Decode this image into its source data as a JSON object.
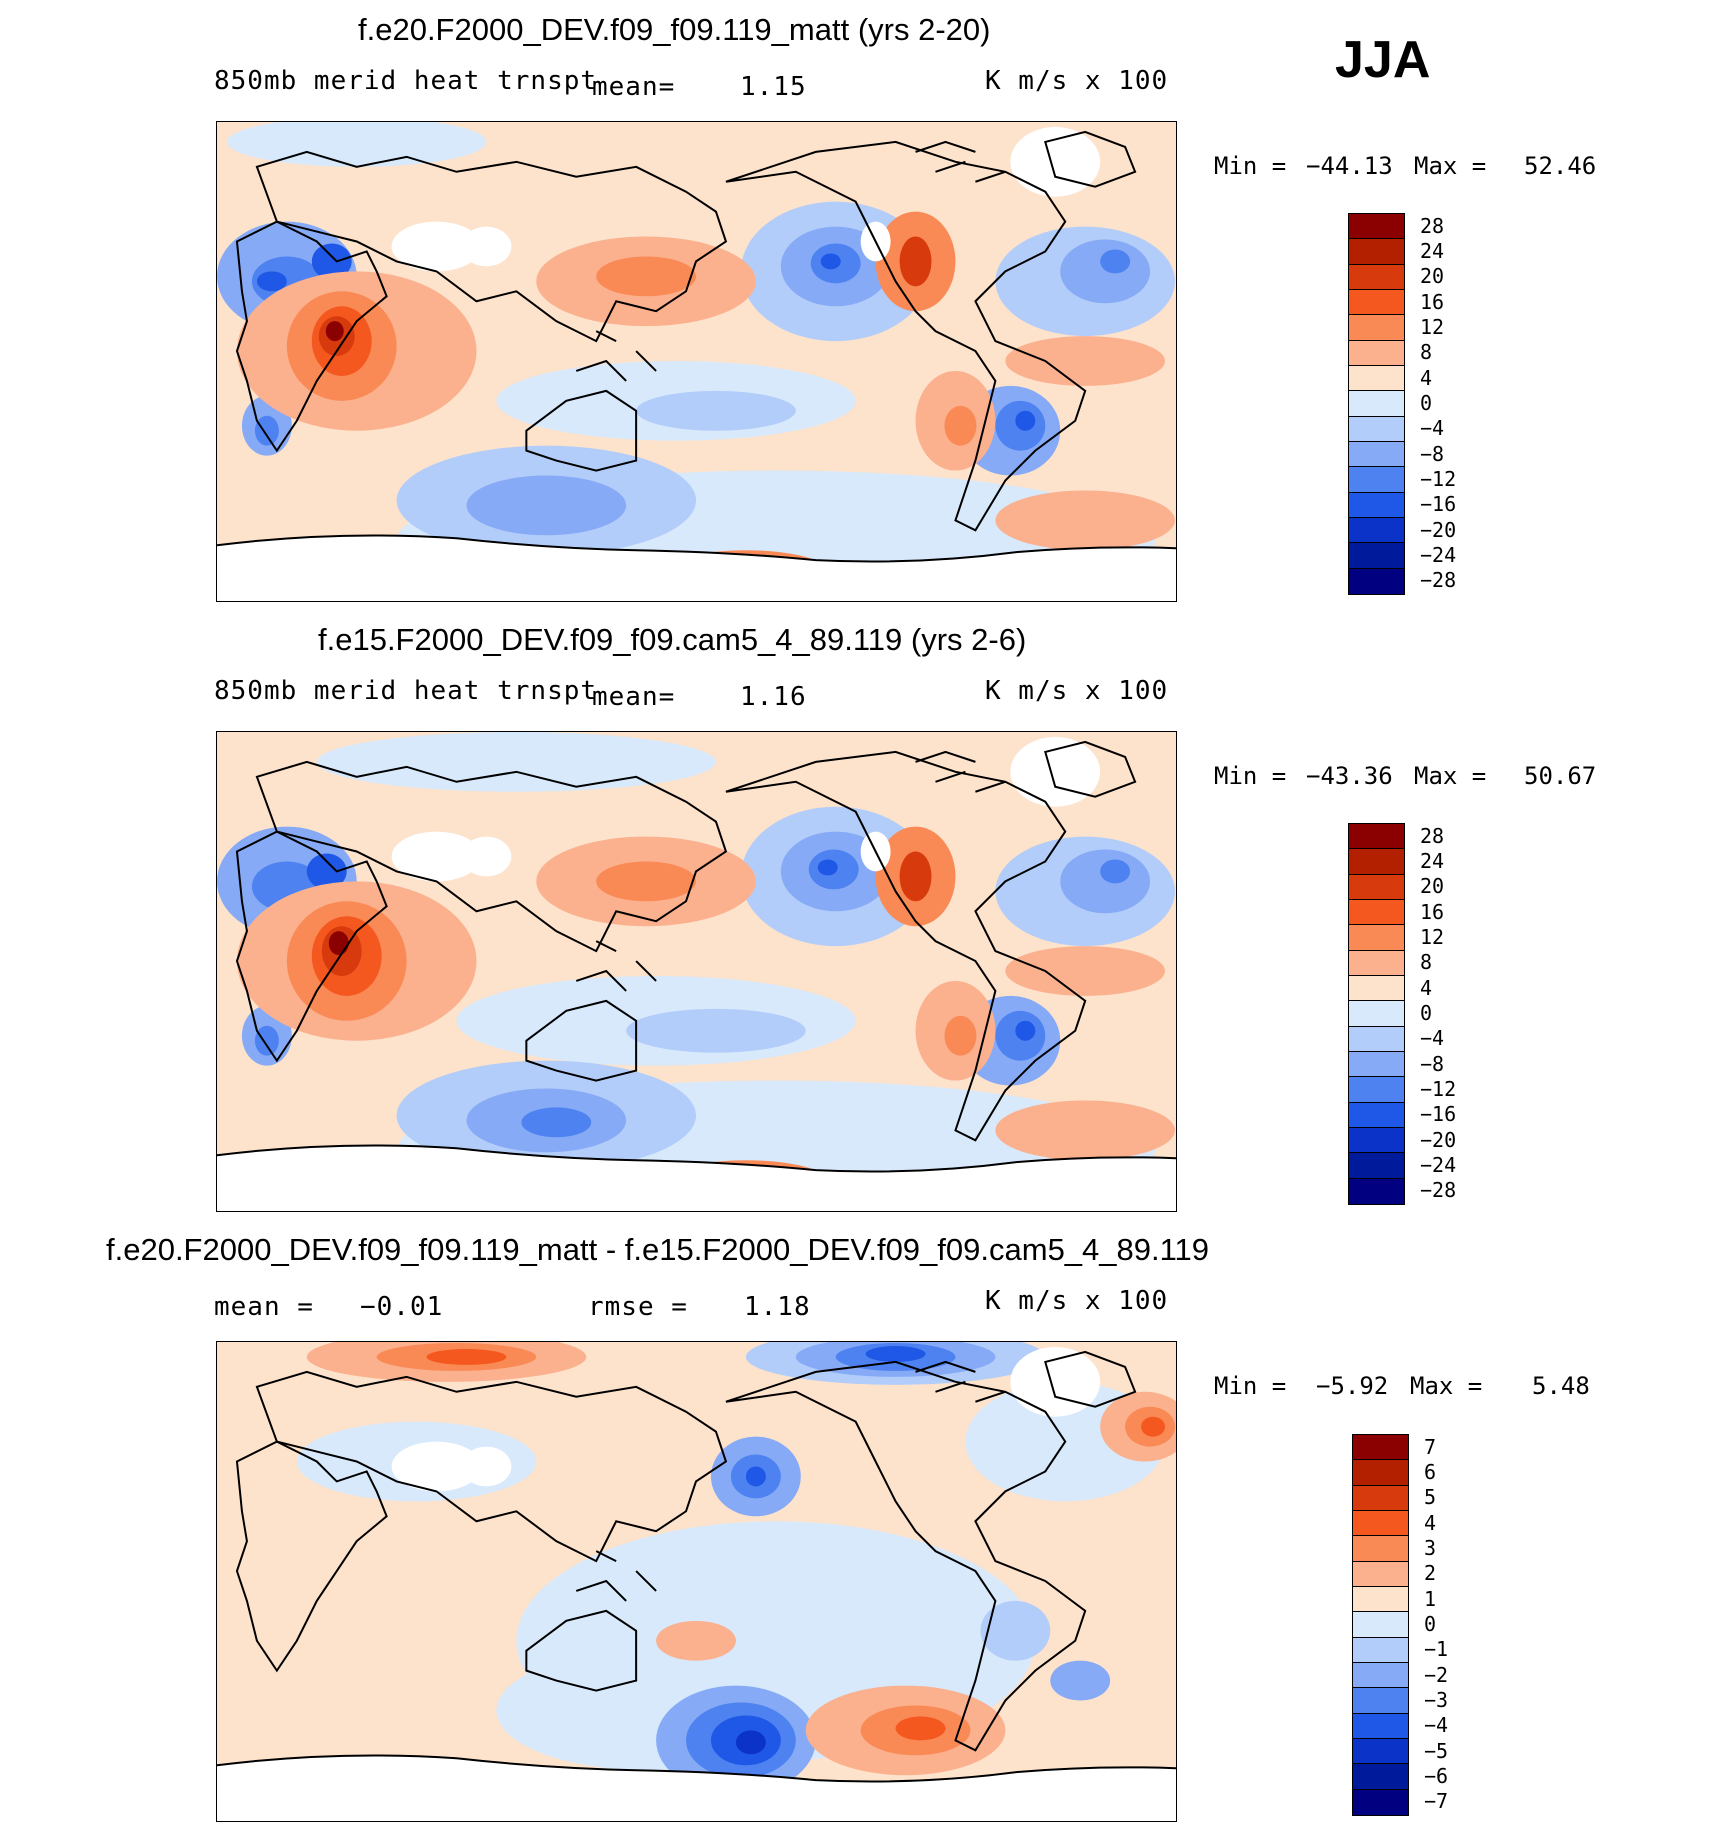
{
  "season": "JJA",
  "panels": [
    {
      "title": "f.e20.F2000_DEV.f09_f09.119_matt (yrs 2-20)",
      "variable": "850mb merid heat trnspt",
      "stat_label": "mean=",
      "stat_value": "1.15",
      "units": "K m/s x 100",
      "min_label": "Min =",
      "min_value": "−44.13",
      "max_label": "Max =",
      "max_value": "52.46",
      "colorbar": {
        "colors": [
          "#8b0000",
          "#b22000",
          "#d73a0c",
          "#f4581f",
          "#f98a55",
          "#fbb08e",
          "#fde2cc",
          "#d7e9fb",
          "#b2cdf9",
          "#86aaf5",
          "#4d82f0",
          "#1f57e6",
          "#0b33c7",
          "#001a9c",
          "#000080"
        ],
        "labels": [
          "28",
          "24",
          "20",
          "16",
          "12",
          "8",
          "4",
          "0",
          "−4",
          "−8",
          "−12",
          "−16",
          "−20",
          "−24",
          "−28"
        ]
      }
    },
    {
      "title": "f.e15.F2000_DEV.f09_f09.cam5_4_89.119 (yrs 2-6)",
      "variable": "850mb merid heat trnspt",
      "stat_label": "mean=",
      "stat_value": "1.16",
      "units": "K m/s x 100",
      "min_label": "Min =",
      "min_value": "−43.36",
      "max_label": "Max =",
      "max_value": "50.67",
      "colorbar": {
        "colors": [
          "#8b0000",
          "#b22000",
          "#d73a0c",
          "#f4581f",
          "#f98a55",
          "#fbb08e",
          "#fde2cc",
          "#d7e9fb",
          "#b2cdf9",
          "#86aaf5",
          "#4d82f0",
          "#1f57e6",
          "#0b33c7",
          "#001a9c",
          "#000080"
        ],
        "labels": [
          "28",
          "24",
          "20",
          "16",
          "12",
          "8",
          "4",
          "0",
          "−4",
          "−8",
          "−12",
          "−16",
          "−20",
          "−24",
          "−28"
        ]
      }
    },
    {
      "title": "f.e20.F2000_DEV.f09_f09.119_matt - f.e15.F2000_DEV.f09_f09.cam5_4_89.119",
      "stat_label": "mean =",
      "stat_value": "−0.01",
      "rmse_label": "rmse =",
      "rmse_value": "1.18",
      "units": "K m/s x 100",
      "min_label": "Min =",
      "min_value": "−5.92",
      "max_label": "Max =",
      "max_value": "5.48",
      "colorbar": {
        "colors": [
          "#8b0000",
          "#b22000",
          "#d73a0c",
          "#f4581f",
          "#f98a55",
          "#fbb08e",
          "#fde2cc",
          "#d7e9fb",
          "#b2cdf9",
          "#86aaf5",
          "#4d82f0",
          "#1f57e6",
          "#0b33c7",
          "#001a9c",
          "#000080"
        ],
        "labels": [
          "7",
          "6",
          "5",
          "4",
          "3",
          "2",
          "1",
          "0",
          "−1",
          "−2",
          "−3",
          "−4",
          "−5",
          "−6",
          "−7"
        ]
      }
    }
  ]
}
